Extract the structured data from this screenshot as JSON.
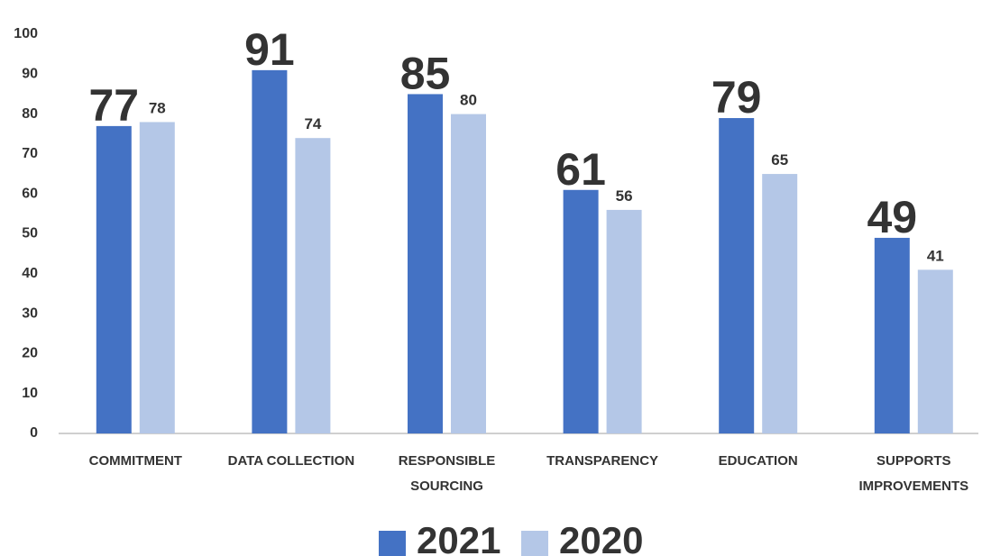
{
  "chart_data": {
    "type": "bar",
    "categories": [
      "COMMITMENT",
      "DATA COLLECTION",
      "RESPONSIBLE SOURCING",
      "TRANSPARENCY",
      "EDUCATION",
      "SUPPORTS IMPROVEMENTS"
    ],
    "series": [
      {
        "name": "2021",
        "color": "#4472c4",
        "values": [
          77,
          91,
          85,
          61,
          79,
          49
        ]
      },
      {
        "name": "2020",
        "color": "#b4c7e7",
        "values": [
          78,
          74,
          80,
          56,
          65,
          41
        ]
      }
    ],
    "ylim": [
      0,
      100
    ],
    "yticks": [
      0,
      10,
      20,
      30,
      40,
      50,
      60,
      70,
      80,
      90,
      100
    ],
    "legend": "bottom"
  }
}
